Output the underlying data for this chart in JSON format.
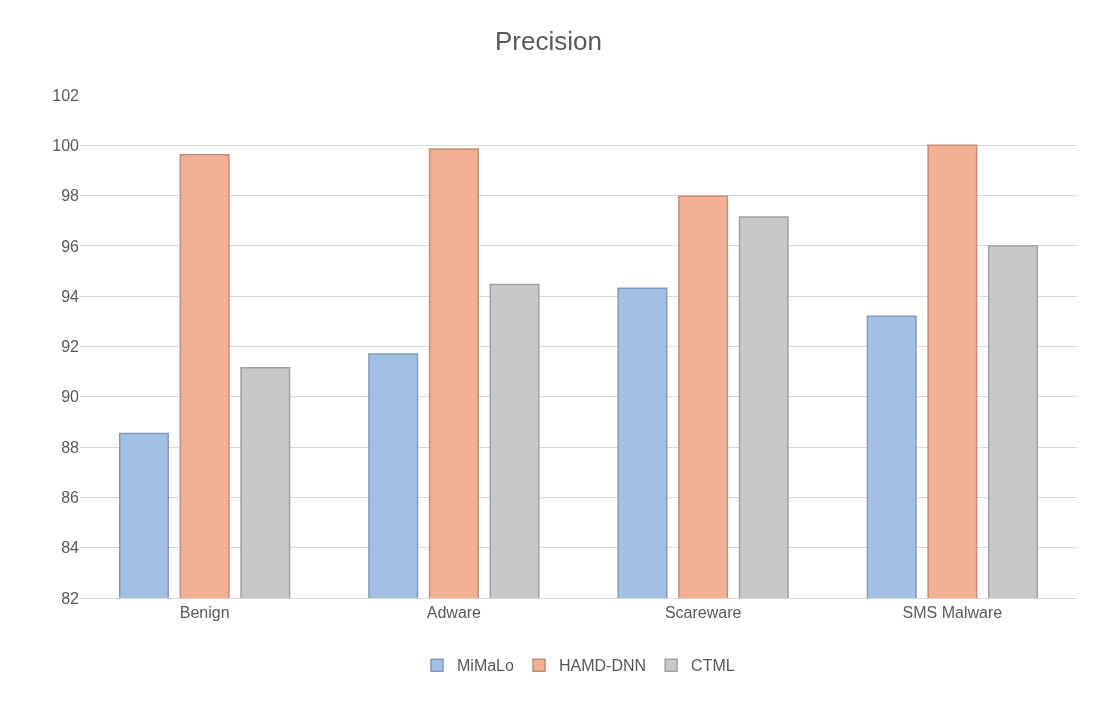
{
  "chart_data": {
    "type": "bar",
    "title": "Precision",
    "categories": [
      "Benign",
      "Adware",
      "Scareware",
      "SMS Malware"
    ],
    "series": [
      {
        "name": "MiMaLo",
        "color": "#a3bfe4",
        "values": [
          88.54,
          91.7,
          94.32,
          93.2
        ]
      },
      {
        "name": "HAMD-DNN",
        "color": "#f4b093",
        "values": [
          99.62,
          99.85,
          97.97,
          100
        ]
      },
      {
        "name": "CTML",
        "color": "#c8c8c8",
        "values": [
          91.16,
          94.47,
          97.15,
          96
        ]
      }
    ],
    "ylim": [
      82,
      102
    ],
    "yticks": [
      82,
      84,
      86,
      88,
      90,
      92,
      94,
      96,
      98,
      100,
      102
    ],
    "grid": "y",
    "legend": "bottom"
  }
}
